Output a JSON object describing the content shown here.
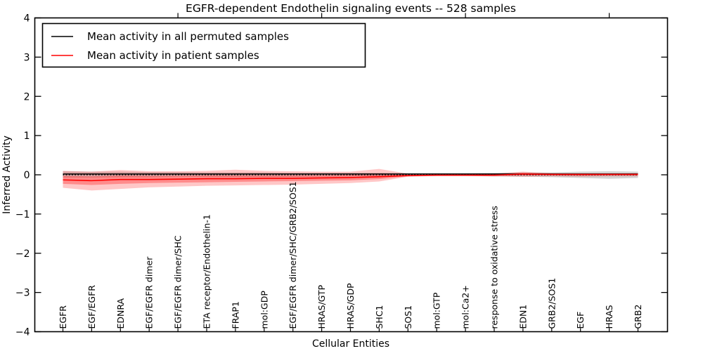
{
  "figure": {
    "background": "#ffffff",
    "frame_color": "#000000"
  },
  "chart_data": {
    "type": "line",
    "title": "EGFR-dependent Endothelin signaling events -- 528 samples",
    "xlabel": "Cellular Entities",
    "ylabel": "Inferred Activity",
    "ylim": [
      -4,
      4
    ],
    "yticks": [
      -4,
      -3,
      -2,
      -1,
      0,
      1,
      2,
      3,
      4
    ],
    "ytick_labels": [
      "−4",
      "−3",
      "−2",
      "−1",
      "0",
      "1",
      "2",
      "3",
      "4"
    ],
    "grid": false,
    "legend": {
      "position": "upper-left",
      "entries": [
        {
          "label": "Mean activity in all permuted samples",
          "color": "#000000"
        },
        {
          "label": "Mean activity in patient samples",
          "color": "#ff0000"
        }
      ]
    },
    "categories": [
      "EGFR",
      "EGF/EGFR",
      "EDNRA",
      "EGF/EGFR dimer",
      "EGF/EGFR dimer/SHC",
      "ETA receptor/Endothelin-1",
      "FRAP1",
      "mol:GDP",
      "EGF/EGFR dimer/SHC/GRB2/SOS1",
      "HRAS/GTP",
      "HRAS/GDP",
      "SHC1",
      "SOS1",
      "mol:GTP",
      "mol:Ca2+",
      "response to oxidative stress",
      "EDN1",
      "GRB2/SOS1",
      "EGF",
      "HRAS",
      "GRB2"
    ],
    "series": [
      {
        "name": "Mean activity in all permuted samples",
        "color": "#000000",
        "values": [
          0.02,
          0.02,
          0.02,
          0.02,
          0.02,
          0.02,
          0.02,
          0.02,
          0.02,
          0.02,
          0.02,
          0.02,
          0.02,
          0.02,
          0.02,
          0.02,
          0.02,
          0.02,
          0.02,
          0.02,
          0.02
        ]
      },
      {
        "name": "Mean activity in patient samples",
        "color": "#ff0000",
        "values": [
          -0.13,
          -0.15,
          -0.12,
          -0.12,
          -0.11,
          -0.1,
          -0.1,
          -0.09,
          -0.09,
          -0.08,
          -0.07,
          -0.05,
          -0.02,
          -0.01,
          -0.01,
          -0.01,
          0.02,
          0.01,
          0.01,
          0.01,
          0.01
        ]
      }
    ],
    "bands": [
      {
        "name": "permuted-std-band",
        "color": "#808080",
        "opacity": 0.35,
        "upper": [
          0.09,
          0.08,
          0.08,
          0.07,
          0.07,
          0.06,
          0.06,
          0.06,
          0.05,
          0.05,
          0.05,
          0.05,
          0.04,
          0.04,
          0.04,
          0.05,
          0.06,
          0.06,
          0.08,
          0.09,
          0.08
        ],
        "lower": [
          -0.07,
          -0.07,
          -0.06,
          -0.06,
          -0.05,
          -0.05,
          -0.05,
          -0.05,
          -0.05,
          -0.04,
          -0.04,
          -0.04,
          -0.03,
          -0.03,
          -0.03,
          -0.04,
          -0.05,
          -0.06,
          -0.08,
          -0.1,
          -0.08
        ]
      },
      {
        "name": "patient-outer-band",
        "color": "#ff0000",
        "opacity": 0.22,
        "upper": [
          0.1,
          0.08,
          0.12,
          0.09,
          0.09,
          0.1,
          0.13,
          0.1,
          0.09,
          0.08,
          0.08,
          0.15,
          0.03,
          0.02,
          0.02,
          0.03,
          0.08,
          0.04,
          0.03,
          0.03,
          0.04
        ],
        "lower": [
          -0.33,
          -0.4,
          -0.36,
          -0.32,
          -0.3,
          -0.28,
          -0.27,
          -0.26,
          -0.25,
          -0.23,
          -0.21,
          -0.17,
          -0.05,
          -0.03,
          -0.03,
          -0.04,
          -0.05,
          -0.04,
          -0.05,
          -0.04,
          -0.04
        ]
      },
      {
        "name": "patient-inner-band",
        "color": "#ff0000",
        "opacity": 0.3,
        "upper": [
          -0.03,
          -0.04,
          -0.02,
          -0.03,
          -0.03,
          -0.02,
          -0.02,
          -0.02,
          -0.02,
          -0.02,
          -0.01,
          0.0,
          0.0,
          0.0,
          0.0,
          0.01,
          0.05,
          0.02,
          0.02,
          0.02,
          0.02
        ],
        "lower": [
          -0.23,
          -0.26,
          -0.23,
          -0.21,
          -0.2,
          -0.19,
          -0.18,
          -0.17,
          -0.16,
          -0.15,
          -0.14,
          -0.11,
          -0.04,
          -0.02,
          -0.02,
          -0.02,
          -0.01,
          -0.01,
          -0.02,
          -0.01,
          -0.01
        ]
      }
    ],
    "zero_line": {
      "y": 0,
      "style": "dotted",
      "color": "#000000"
    },
    "top_tick_category_indices": [
      4,
      9,
      14,
      19
    ]
  }
}
